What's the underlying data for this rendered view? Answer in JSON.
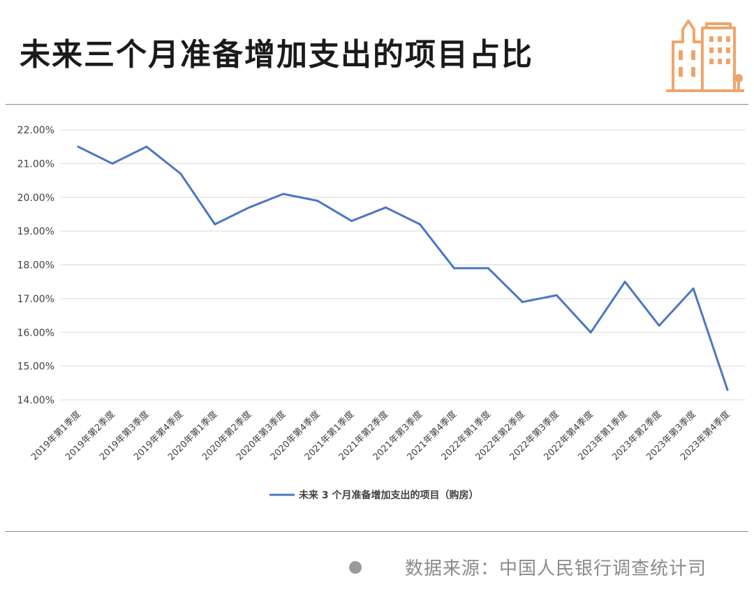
{
  "header": {
    "title": "未来三个月准备增加支出的项目占比",
    "logo_icon": "city-buildings-icon",
    "accent_color": "#f0a46a"
  },
  "footer": {
    "source_text": "数据来源：中国人民银行调查统计司"
  },
  "chart_data": {
    "type": "line",
    "title": "",
    "xlabel": "",
    "ylabel": "",
    "ylim": [
      0.14,
      0.22
    ],
    "yticks": [
      "22.00%",
      "21.00%",
      "20.00%",
      "19.00%",
      "18.00%",
      "17.00%",
      "16.00%",
      "15.00%",
      "14.00%"
    ],
    "grid": true,
    "legend_position": "bottom",
    "line_color": "#4a76c4",
    "categories": [
      "2019年第1季度",
      "2019年第2季度",
      "2019年第3季度",
      "2019年第4季度",
      "2020年第1季度",
      "2020年第2季度",
      "2020年第3季度",
      "2020年第4季度",
      "2021年第1季度",
      "2021年第2季度",
      "2021年第3季度",
      "2021年第4季度",
      "2022年第1季度",
      "2022年第2季度",
      "2022年第3季度",
      "2022年第4季度",
      "2023年第1季度",
      "2023年第2季度",
      "2023年第3季度",
      "2023年第4季度"
    ],
    "series": [
      {
        "name": "未来 3 个月准备增加支出的项目（购房）",
        "values": [
          0.215,
          0.21,
          0.215,
          0.207,
          0.192,
          0.197,
          0.201,
          0.199,
          0.193,
          0.197,
          0.192,
          0.179,
          0.179,
          0.169,
          0.171,
          0.16,
          0.175,
          0.162,
          0.173,
          0.143
        ]
      }
    ]
  }
}
